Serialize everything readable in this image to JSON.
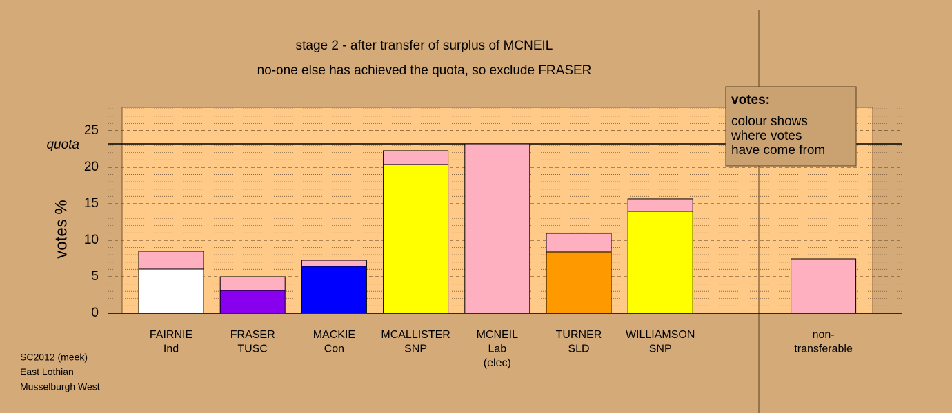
{
  "chart_data": {
    "type": "stacked-bar",
    "title": "stage 2 - after transfer of surplus of MCNEIL",
    "subtitle": "no-one else has achieved the quota, so exclude FRASER",
    "y_label": "votes %",
    "categories": [
      [
        "FAIRNIE",
        "Ind"
      ],
      [
        "FRASER",
        "TUSC"
      ],
      [
        "MACKIE",
        "Con"
      ],
      [
        "MCALLISTER",
        "SNP"
      ],
      [
        "MCNEIL",
        "Lab",
        "(elec)"
      ],
      [
        "TURNER",
        "SLD"
      ],
      [
        "WILLIAMSON",
        "SNP"
      ],
      [
        "non-",
        "transferable"
      ]
    ],
    "series": [
      {
        "colors": [
          "#ffffff",
          "#8800ee",
          "#0000ff",
          "#ffff00",
          null,
          "#ff9900",
          "#ffff00",
          null
        ],
        "values": [
          6.04,
          3.11,
          6.42,
          20.38,
          null,
          8.4,
          13.96,
          null
        ]
      },
      {
        "color": "#ffb0c0",
        "values": [
          2.45,
          1.89,
          0.84,
          1.88,
          23.2,
          2.54,
          1.7,
          7.45
        ]
      }
    ],
    "ylim": [
      0,
      28.2
    ],
    "yticks": [
      0,
      5,
      10,
      15,
      20,
      25
    ],
    "minor_yticks": [
      1,
      2,
      3,
      4,
      6,
      7,
      8,
      9,
      11,
      12,
      13,
      14,
      16,
      17,
      18,
      19,
      21,
      22,
      23,
      24,
      26,
      27,
      28
    ],
    "grid": true,
    "quota": {
      "label": "quota",
      "value": 23.2
    },
    "legend": {
      "title": "votes:",
      "lines": [
        "colour shows",
        "where votes",
        "have come from"
      ]
    },
    "notes": [
      "SC2012 (meek)",
      "East Lothian",
      "Musselburgh West"
    ]
  }
}
